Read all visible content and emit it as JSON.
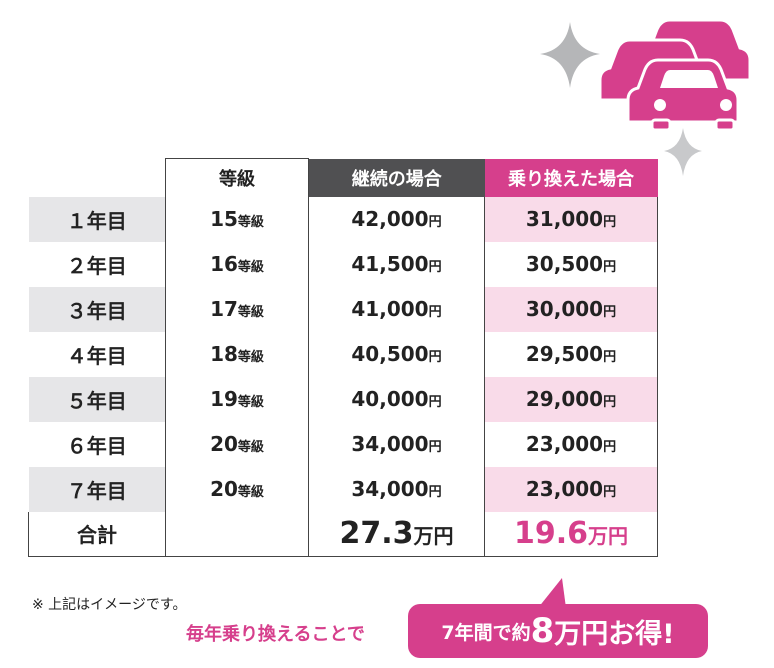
{
  "table": {
    "headers": [
      "",
      "等級",
      "継続の場合",
      "乗り換えた場合"
    ],
    "rows": [
      {
        "year": "１年目",
        "grade": "15",
        "grade_unit": "等級",
        "continue": "42,000",
        "switch": "31,000"
      },
      {
        "year": "２年目",
        "grade": "16",
        "grade_unit": "等級",
        "continue": "41,500",
        "switch": "30,500"
      },
      {
        "year": "３年目",
        "grade": "17",
        "grade_unit": "等級",
        "continue": "41,000",
        "switch": "30,000"
      },
      {
        "year": "４年目",
        "grade": "18",
        "grade_unit": "等級",
        "continue": "40,500",
        "switch": "29,500"
      },
      {
        "year": "５年目",
        "grade": "19",
        "grade_unit": "等級",
        "continue": "40,000",
        "switch": "29,000"
      },
      {
        "year": "６年目",
        "grade": "20",
        "grade_unit": "等級",
        "continue": "34,000",
        "switch": "23,000"
      },
      {
        "year": "７年目",
        "grade": "20",
        "grade_unit": "等級",
        "continue": "34,000",
        "switch": "23,000"
      }
    ],
    "yen": "円",
    "total": {
      "label": "合計",
      "continue": "27.3",
      "switch": "19.6",
      "unit": "万円"
    }
  },
  "note": "※ 上記はイメージです。",
  "lead": "毎年乗り換えることで",
  "bubble": {
    "pre": "7年間で約",
    "num": "8",
    "unit": "万円",
    "post": "お得!"
  },
  "colors": {
    "accent": "#d63f8c",
    "header_gray": "#505052",
    "row_gray": "#e6e6e8",
    "row_pink": "#f9dbe9"
  }
}
